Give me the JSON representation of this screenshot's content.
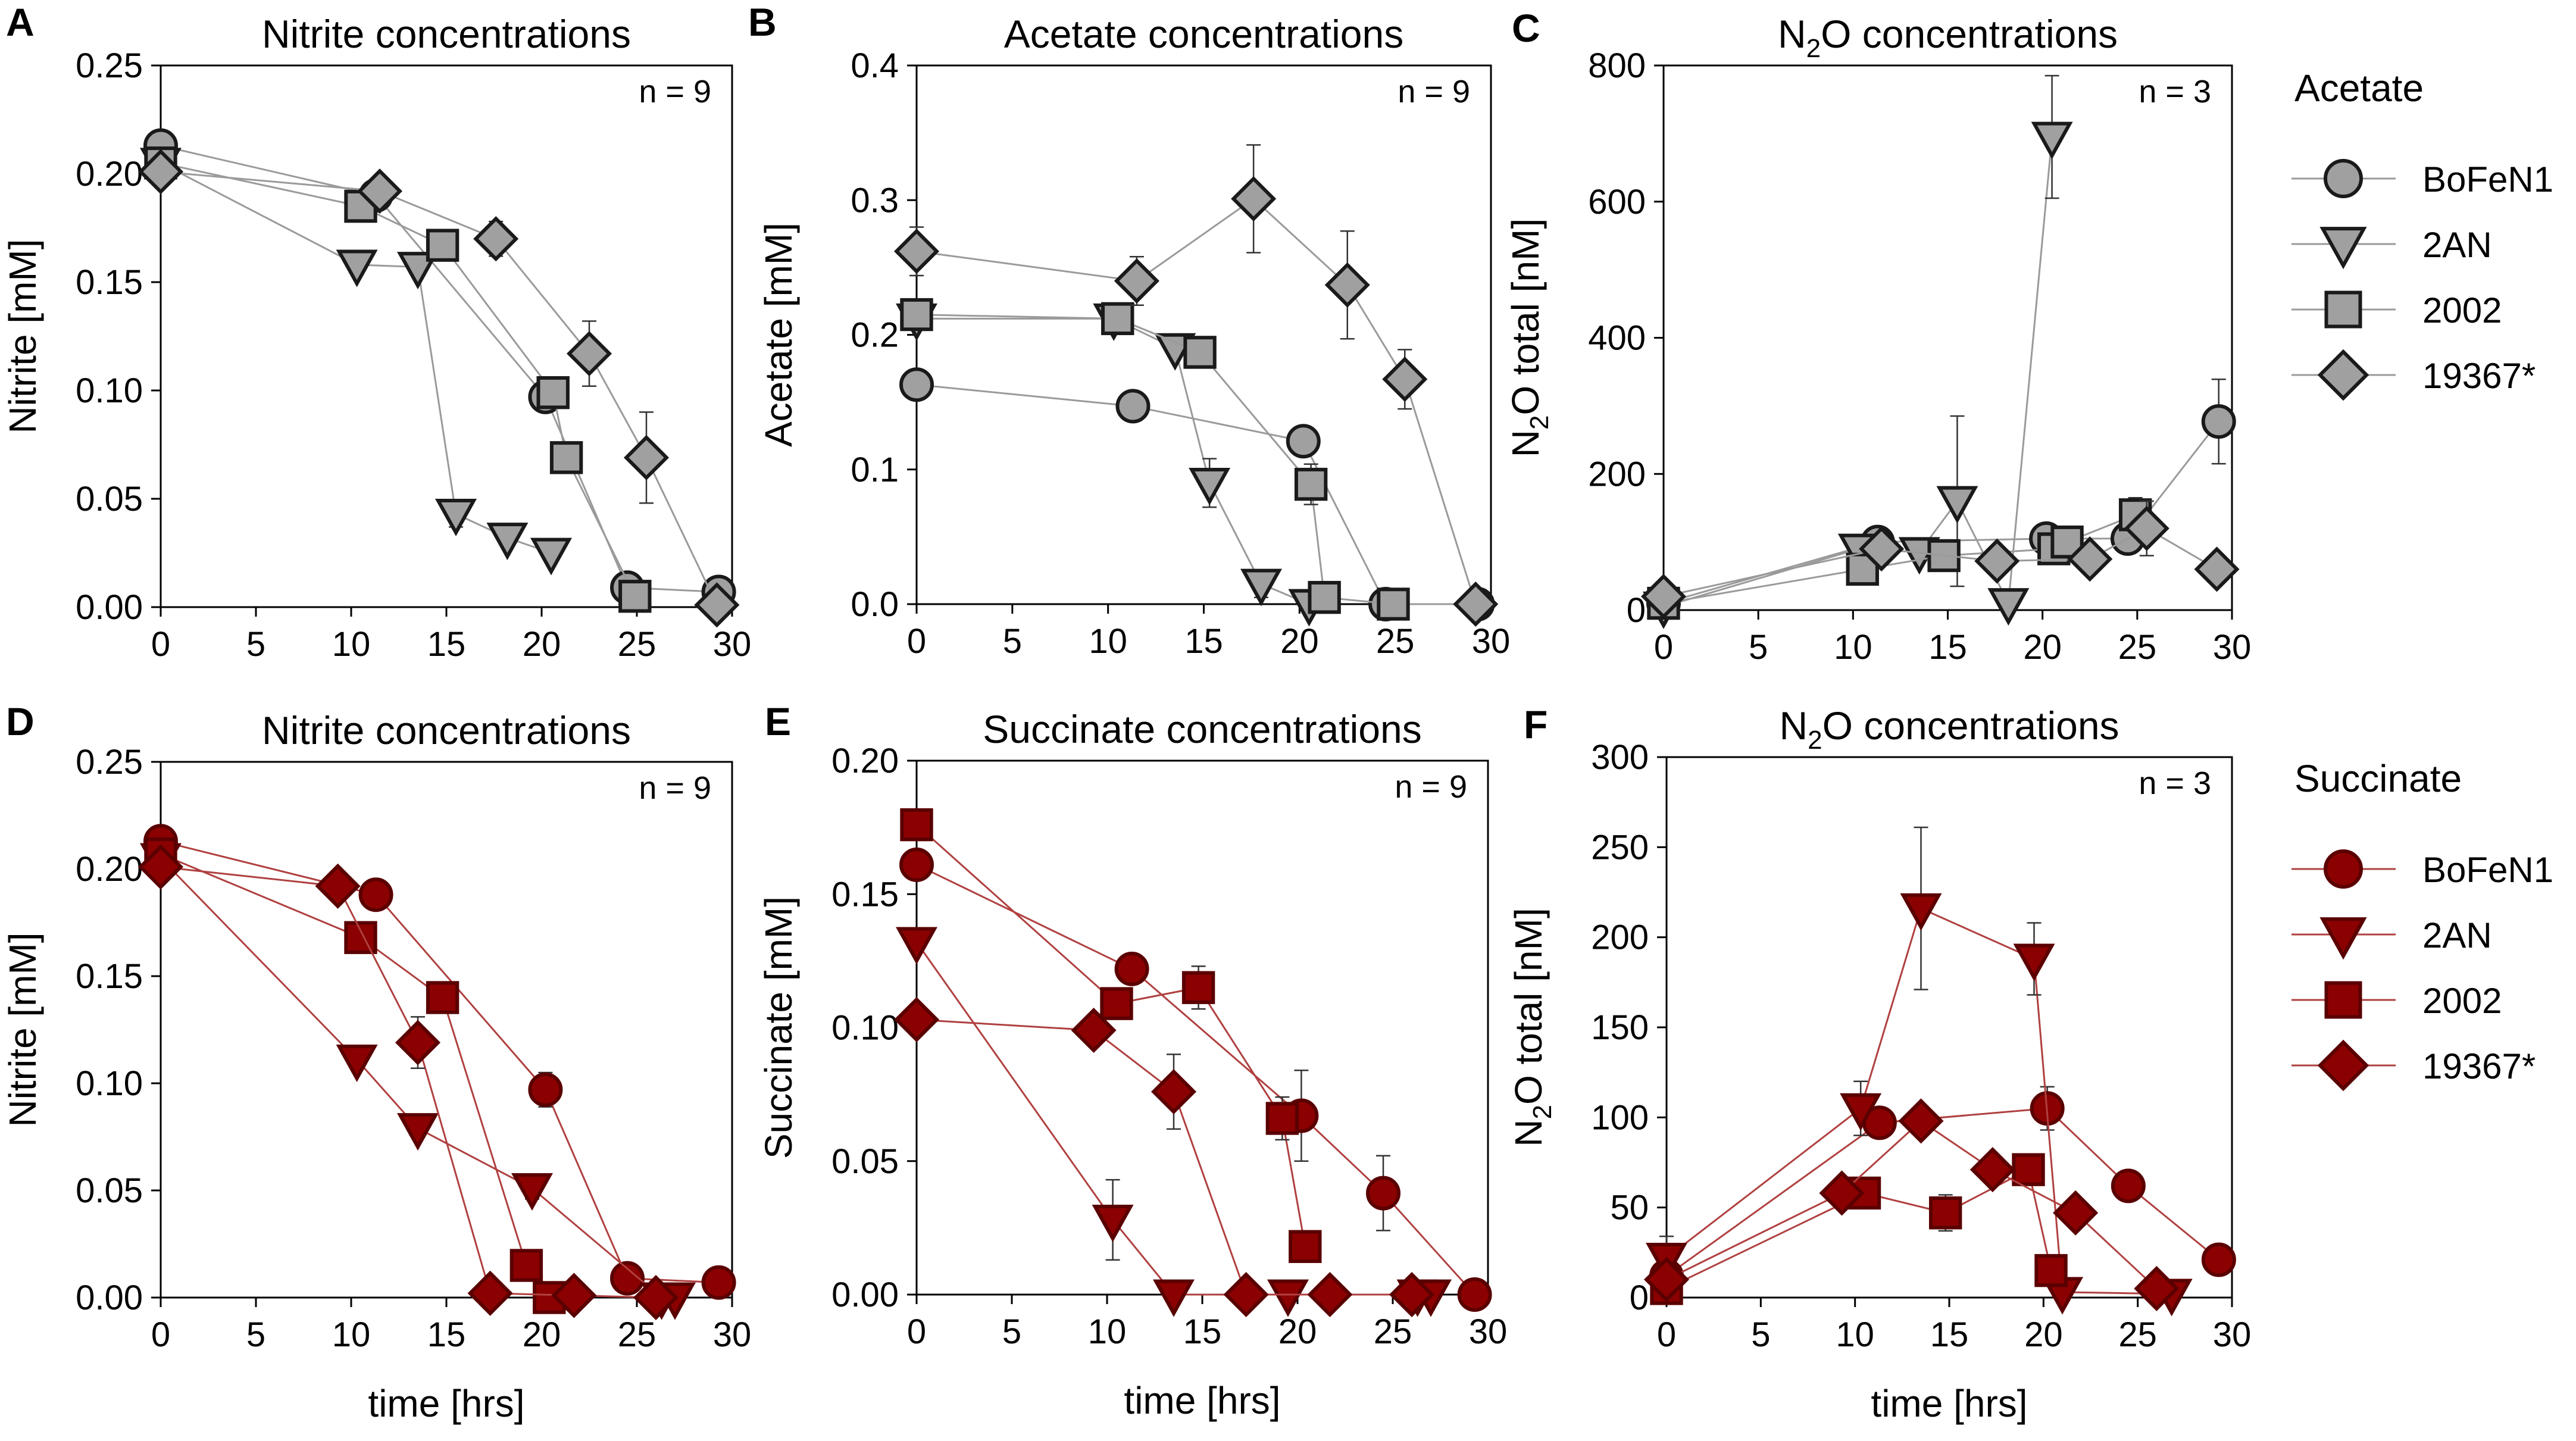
{
  "chart_data": [
    {
      "panel_letter": "A",
      "type": "line",
      "title": "Nitrite concentrations",
      "ylabel": "Nitrite [mM]",
      "xlabel": "",
      "annotation": "n = 9",
      "xlim": [
        0,
        30
      ],
      "ylim": [
        0,
        0.25
      ],
      "xticks": [
        0,
        5,
        10,
        15,
        20,
        25,
        30
      ],
      "yticks": [
        0,
        0.05,
        0.1,
        0.15,
        0.2,
        0.25
      ],
      "ytick_labels": [
        "0.00",
        "0.05",
        "0.10",
        "0.15",
        "0.20",
        "0.25"
      ],
      "series": [
        {
          "name": "BoFeN1",
          "marker": "circle",
          "x": [
            0,
            11.3,
            20.2,
            24.5,
            29.3
          ],
          "y": [
            0.213,
            0.19,
            0.097,
            0.009,
            0.007
          ],
          "err": [
            0,
            0,
            0.005,
            0,
            0
          ]
        },
        {
          "name": "2AN",
          "marker": "triangle-down",
          "x": [
            0,
            10.3,
            13.5,
            15.5,
            18.2,
            20.5
          ],
          "y": [
            0.205,
            0.158,
            0.157,
            0.043,
            0.032,
            0.025
          ],
          "err": [
            0,
            0,
            0,
            0.006,
            0.004,
            0.004
          ]
        },
        {
          "name": "2002",
          "marker": "square",
          "x": [
            0,
            10.5,
            14.8,
            20.6,
            21.3,
            24.9
          ],
          "y": [
            0.205,
            0.185,
            0.167,
            0.099,
            0.069,
            0.005
          ],
          "err": [
            0,
            0,
            0,
            0,
            0,
            0
          ]
        },
        {
          "name": "19367*",
          "marker": "diamond",
          "x": [
            0,
            11.5,
            17.6,
            22.5,
            25.5,
            29.2
          ],
          "y": [
            0.201,
            0.192,
            0.17,
            0.117,
            0.069,
            0.001
          ],
          "err": [
            0,
            0,
            0.008,
            0.015,
            0.021,
            0
          ]
        }
      ]
    },
    {
      "panel_letter": "B",
      "type": "line",
      "title": "Acetate concentrations",
      "ylabel": "Acetate [mM]",
      "xlabel": "",
      "annotation": "n = 9",
      "xlim": [
        0,
        30
      ],
      "ylim": [
        0,
        0.4
      ],
      "xticks": [
        0,
        5,
        10,
        15,
        20,
        25,
        30
      ],
      "yticks": [
        0,
        0.1,
        0.2,
        0.3,
        0.4
      ],
      "ytick_labels": [
        "0.0",
        "0.1",
        "0.2",
        "0.3",
        "0.4"
      ],
      "series": [
        {
          "name": "BoFeN1",
          "marker": "circle",
          "x": [
            0,
            11.3,
            20.2,
            24.5,
            29.3
          ],
          "y": [
            0.163,
            0.147,
            0.121,
            0.0,
            0.0
          ],
          "err": [
            0,
            0,
            0,
            0,
            0
          ]
        },
        {
          "name": "2AN",
          "marker": "triangle-down",
          "x": [
            0,
            10.3,
            13.5,
            15.3,
            18.0,
            20.5
          ],
          "y": [
            0.212,
            0.212,
            0.19,
            0.09,
            0.015,
            0.0
          ],
          "err": [
            0,
            0,
            0,
            0.018,
            0.01,
            0
          ]
        },
        {
          "name": "2002",
          "marker": "square",
          "x": [
            0,
            10.5,
            14.8,
            20.6,
            21.3,
            24.9
          ],
          "y": [
            0.215,
            0.212,
            0.187,
            0.089,
            0.005,
            0.0
          ],
          "err": [
            0,
            0,
            0,
            0.015,
            0,
            0
          ]
        },
        {
          "name": "19367*",
          "marker": "diamond",
          "x": [
            0,
            11.5,
            17.6,
            22.5,
            25.5,
            29.2
          ],
          "y": [
            0.262,
            0.24,
            0.301,
            0.237,
            0.167,
            0.0
          ],
          "err": [
            0.018,
            0.018,
            0.04,
            0.04,
            0.022,
            0
          ]
        }
      ]
    },
    {
      "panel_letter": "C",
      "type": "line",
      "title": "N",
      "title_sub": "2",
      "title_rest": "O concentrations",
      "ylabel": "N",
      "ylabel_sub": "2",
      "ylabel_rest": "O total [nM]",
      "xlabel": "",
      "annotation": "n = 3",
      "xlim": [
        0,
        30
      ],
      "ylim": [
        0,
        800
      ],
      "xticks": [
        0,
        5,
        10,
        15,
        20,
        25,
        30
      ],
      "yticks": [
        0,
        200,
        400,
        600,
        800
      ],
      "ytick_labels": [
        "0",
        "200",
        "400",
        "600",
        "800"
      ],
      "series": [
        {
          "name": "BoFeN1",
          "marker": "circle",
          "x": [
            0,
            11.3,
            20.2,
            24.5,
            29.3
          ],
          "y": [
            10,
            100,
            105,
            105,
            277
          ],
          "err": [
            0,
            0,
            0,
            20,
            62
          ]
        },
        {
          "name": "2AN",
          "marker": "triangle-down",
          "x": [
            0,
            10.3,
            13.5,
            15.5,
            18.2,
            20.5
          ],
          "y": [
            5,
            90,
            85,
            160,
            10,
            695
          ],
          "err": [
            0,
            0,
            0,
            125,
            0,
            90
          ]
        },
        {
          "name": "2002",
          "marker": "square",
          "x": [
            0,
            10.5,
            14.8,
            20.6,
            21.3,
            24.9
          ],
          "y": [
            10,
            60,
            80,
            90,
            100,
            140
          ],
          "err": [
            0,
            0,
            0,
            0,
            0,
            25
          ]
        },
        {
          "name": "19367*",
          "marker": "diamond",
          "x": [
            0,
            11.5,
            17.6,
            22.5,
            25.5,
            29.2
          ],
          "y": [
            20,
            90,
            72,
            75,
            120,
            60
          ],
          "err": [
            0,
            0,
            0,
            0,
            40,
            0
          ]
        }
      ]
    },
    {
      "panel_letter": "D",
      "type": "line",
      "title": "Nitrite concentrations",
      "ylabel": "Nitrite [mM]",
      "xlabel": "time [hrs]",
      "annotation": "n = 9",
      "xlim": [
        0,
        30
      ],
      "ylim": [
        0,
        0.25
      ],
      "xticks": [
        0,
        5,
        10,
        15,
        20,
        25,
        30
      ],
      "yticks": [
        0,
        0.05,
        0.1,
        0.15,
        0.2,
        0.25
      ],
      "ytick_labels": [
        "0.00",
        "0.05",
        "0.10",
        "0.15",
        "0.20",
        "0.25"
      ],
      "series": [
        {
          "name": "BoFeN1",
          "marker": "circle",
          "x": [
            0,
            11.3,
            20.2,
            24.5,
            29.3
          ],
          "y": [
            0.213,
            0.188,
            0.097,
            0.009,
            0.007
          ],
          "err": [
            0,
            0,
            0.008,
            0,
            0
          ]
        },
        {
          "name": "2AN",
          "marker": "triangle-down",
          "x": [
            0,
            10.3,
            13.5,
            19.5,
            26.3,
            27.0
          ],
          "y": [
            0.205,
            0.111,
            0.079,
            0.051,
            0.0,
            0.0
          ],
          "err": [
            0,
            0,
            0,
            0.005,
            0,
            0
          ]
        },
        {
          "name": "2002",
          "marker": "square",
          "x": [
            0,
            10.5,
            14.8,
            19.2,
            20.4
          ],
          "y": [
            0.207,
            0.168,
            0.14,
            0.015,
            0.0
          ],
          "err": [
            0,
            0,
            0,
            0.005,
            0
          ]
        },
        {
          "name": "19367*",
          "marker": "diamond",
          "x": [
            0,
            9.3,
            13.5,
            17.3,
            21.7,
            26.0
          ],
          "y": [
            0.201,
            0.192,
            0.119,
            0.002,
            0.001,
            0.0
          ],
          "err": [
            0,
            0,
            0.012,
            0,
            0,
            0
          ]
        }
      ]
    },
    {
      "panel_letter": "E",
      "type": "line",
      "title": "Succinate concentrations",
      "ylabel": "Succinate [mM]",
      "xlabel": "time [hrs]",
      "annotation": "n = 9",
      "xlim": [
        0,
        30
      ],
      "ylim": [
        0,
        0.2
      ],
      "xticks": [
        0,
        5,
        10,
        15,
        20,
        25,
        30
      ],
      "yticks": [
        0,
        0.05,
        0.1,
        0.15,
        0.2
      ],
      "ytick_labels": [
        "0.00",
        "0.05",
        "0.10",
        "0.15",
        "0.20"
      ],
      "series": [
        {
          "name": "BoFeN1",
          "marker": "circle",
          "x": [
            0,
            11.3,
            20.2,
            24.5,
            29.3
          ],
          "y": [
            0.161,
            0.122,
            0.067,
            0.038,
            0.0
          ],
          "err": [
            0,
            0,
            0.017,
            0.014,
            0
          ]
        },
        {
          "name": "2AN",
          "marker": "triangle-down",
          "x": [
            0,
            10.3,
            13.5,
            19.5,
            26.3,
            27.0
          ],
          "y": [
            0.132,
            0.028,
            0.0,
            0.0,
            0.0,
            0.0
          ],
          "err": [
            0,
            0.015,
            0,
            0,
            0,
            0
          ]
        },
        {
          "name": "2002",
          "marker": "square",
          "x": [
            0,
            10.5,
            14.8,
            19.2,
            20.4
          ],
          "y": [
            0.176,
            0.109,
            0.115,
            0.066,
            0.018
          ],
          "err": [
            0,
            0,
            0.008,
            0.008,
            0
          ]
        },
        {
          "name": "19367*",
          "marker": "diamond",
          "x": [
            0,
            9.3,
            13.5,
            17.3,
            21.7,
            26.0
          ],
          "y": [
            0.103,
            0.099,
            0.076,
            0.0,
            0.0,
            0.0
          ],
          "err": [
            0,
            0.005,
            0.014,
            0,
            0,
            0
          ]
        }
      ]
    },
    {
      "panel_letter": "F",
      "type": "line",
      "title": "N",
      "title_sub": "2",
      "title_rest": "O concentrations",
      "ylabel": "N",
      "ylabel_sub": "2",
      "ylabel_rest": "O total [nM]",
      "xlabel": "time [hrs]",
      "annotation": "n = 3",
      "xlim": [
        0,
        30
      ],
      "ylim": [
        0,
        300
      ],
      "xticks": [
        0,
        5,
        10,
        15,
        20,
        25,
        30
      ],
      "yticks": [
        0,
        50,
        100,
        150,
        200,
        250,
        300
      ],
      "ytick_labels": [
        "0",
        "50",
        "100",
        "150",
        "200",
        "250",
        "300"
      ],
      "series": [
        {
          "name": "BoFeN1",
          "marker": "circle",
          "x": [
            0,
            11.3,
            20.2,
            24.5,
            29.3
          ],
          "y": [
            12,
            97,
            105,
            62,
            21
          ],
          "err": [
            0,
            0,
            12,
            0,
            0
          ]
        },
        {
          "name": "2AN",
          "marker": "triangle-down",
          "x": [
            0,
            10.3,
            13.5,
            19.5,
            21.0,
            26.8
          ],
          "y": [
            22,
            105,
            216,
            188,
            3,
            2
          ],
          "err": [
            12,
            15,
            45,
            20,
            0,
            0
          ]
        },
        {
          "name": "2002",
          "marker": "square",
          "x": [
            0,
            10.5,
            14.8,
            19.2,
            20.4
          ],
          "y": [
            5,
            58,
            47,
            71,
            15
          ],
          "err": [
            0,
            0,
            10,
            0,
            0
          ]
        },
        {
          "name": "19367*",
          "marker": "diamond",
          "x": [
            0,
            9.3,
            13.5,
            17.3,
            21.7,
            26.0
          ],
          "y": [
            10,
            58,
            98,
            71,
            47,
            5
          ],
          "err": [
            0,
            0,
            0,
            0,
            0,
            0
          ]
        }
      ]
    }
  ],
  "legends": [
    {
      "title": "Acetate",
      "fill": "#a0a0a0",
      "line": "#9a9a9a",
      "stroke": "#1a1a1a",
      "entries": [
        {
          "label": "BoFeN1",
          "marker": "circle"
        },
        {
          "label": "2AN",
          "marker": "triangle-down"
        },
        {
          "label": "2002",
          "marker": "square"
        },
        {
          "label": "19367*",
          "marker": "diamond"
        }
      ]
    },
    {
      "title": "Succinate",
      "fill": "#8b0000",
      "line": "#b04040",
      "stroke": "#5a0000",
      "entries": [
        {
          "label": "BoFeN1",
          "marker": "circle"
        },
        {
          "label": "2AN",
          "marker": "triangle-down"
        },
        {
          "label": "2002",
          "marker": "square"
        },
        {
          "label": "19367*",
          "marker": "diamond"
        }
      ]
    }
  ],
  "colors": {
    "acetate_marker_fill": "#a0a0a0",
    "acetate_marker_stroke": "#1a1a1a",
    "acetate_line": "#9a9a9a",
    "succinate_marker_fill": "#8b0000",
    "succinate_marker_stroke": "#5a0000",
    "succinate_line": "#b04040"
  }
}
